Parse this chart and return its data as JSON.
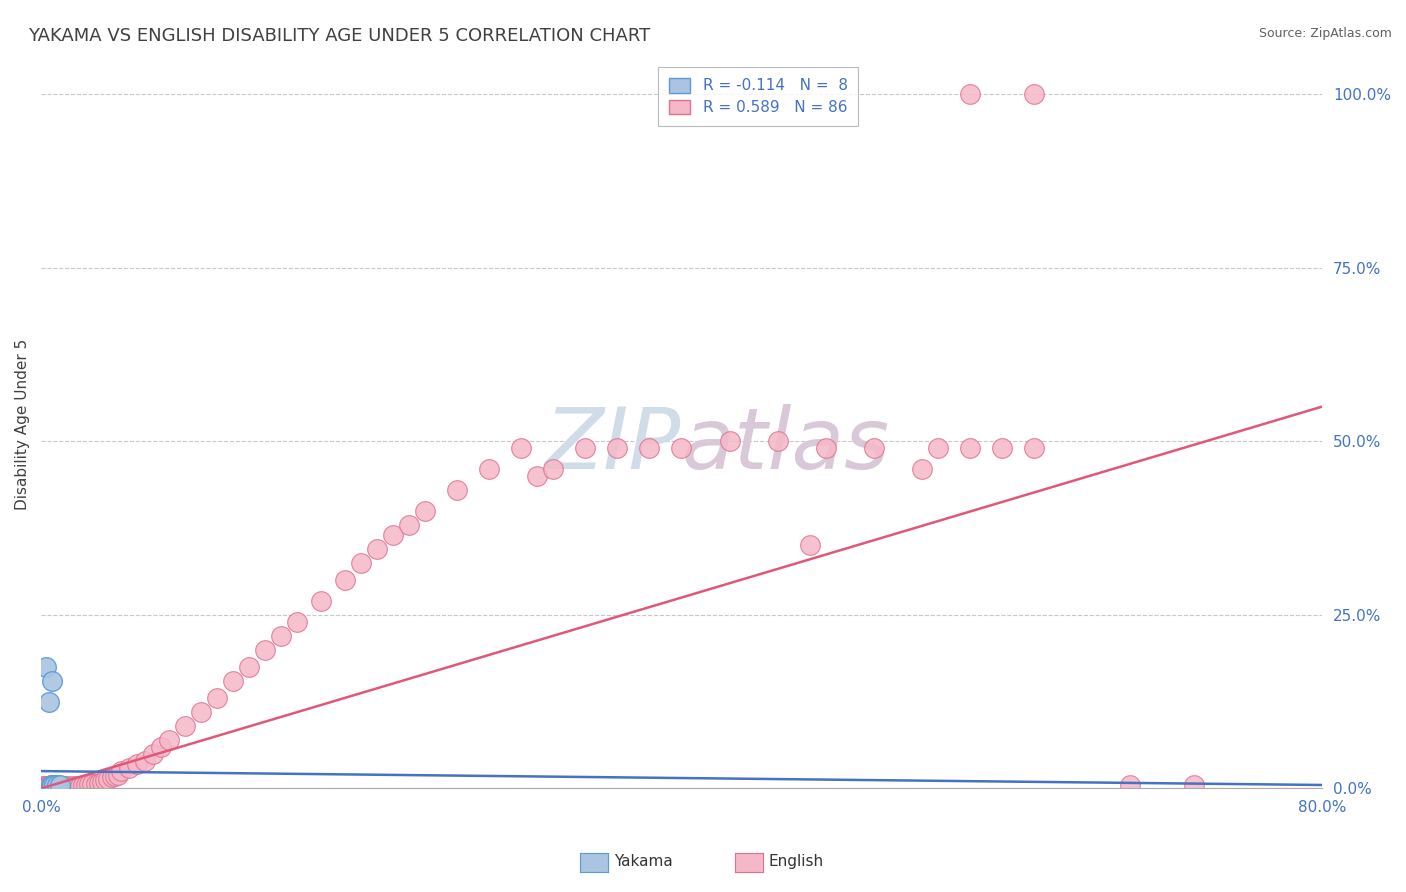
{
  "title": "YAKAMA VS ENGLISH DISABILITY AGE UNDER 5 CORRELATION CHART",
  "source": "Source: ZipAtlas.com",
  "ylabel": "Disability Age Under 5",
  "xmin": 0.0,
  "xmax": 0.8,
  "ymin": 0.0,
  "ymax": 1.05,
  "y_ticks_right": [
    0.0,
    0.25,
    0.5,
    0.75,
    1.0
  ],
  "y_tick_labels_right": [
    "0.0%",
    "25.0%",
    "50.0%",
    "75.0%",
    "100.0%"
  ],
  "yakama_color": "#aac4e2",
  "english_color": "#f5b8c8",
  "yakama_edge_color": "#5b9bd5",
  "english_edge_color": "#e07090",
  "yakama_line_color": "#4472c4",
  "english_line_color": "#e05878",
  "text_color": "#4472c4",
  "grid_color": "#c8c8c8",
  "watermark_color": "#d0dce8",
  "title_color": "#404040",
  "source_color": "#606060",
  "ylabel_color": "#404040",
  "eng_line_y0": 0.0,
  "eng_line_y1": 0.55,
  "yak_line_y0": 0.025,
  "yak_line_y1": 0.005,
  "yakama_x": [
    0.003,
    0.005,
    0.006,
    0.007,
    0.007,
    0.008,
    0.01,
    0.012
  ],
  "yakama_y": [
    0.175,
    0.125,
    0.005,
    0.005,
    0.155,
    0.005,
    0.005,
    0.005
  ],
  "english_x": [
    0.001,
    0.001,
    0.002,
    0.002,
    0.003,
    0.003,
    0.004,
    0.004,
    0.005,
    0.005,
    0.006,
    0.006,
    0.007,
    0.007,
    0.008,
    0.008,
    0.009,
    0.01,
    0.01,
    0.011,
    0.012,
    0.013,
    0.015,
    0.016,
    0.017,
    0.018,
    0.02,
    0.022,
    0.024,
    0.026,
    0.028,
    0.03,
    0.032,
    0.034,
    0.036,
    0.038,
    0.04,
    0.042,
    0.044,
    0.046,
    0.048,
    0.05,
    0.055,
    0.06,
    0.065,
    0.07,
    0.075,
    0.08,
    0.09,
    0.1,
    0.11,
    0.12,
    0.13,
    0.14,
    0.15,
    0.16,
    0.175,
    0.19,
    0.2,
    0.21,
    0.22,
    0.23,
    0.24,
    0.26,
    0.28,
    0.3,
    0.31,
    0.32,
    0.34,
    0.36,
    0.38,
    0.4,
    0.43,
    0.46,
    0.49,
    0.52,
    0.56,
    0.6,
    0.48,
    0.55,
    0.62,
    0.58,
    0.62,
    0.58,
    0.68,
    0.72
  ],
  "english_y": [
    0.002,
    0.003,
    0.002,
    0.003,
    0.002,
    0.003,
    0.002,
    0.003,
    0.002,
    0.003,
    0.002,
    0.003,
    0.002,
    0.003,
    0.002,
    0.003,
    0.002,
    0.002,
    0.003,
    0.002,
    0.003,
    0.002,
    0.003,
    0.002,
    0.003,
    0.002,
    0.003,
    0.004,
    0.004,
    0.005,
    0.005,
    0.006,
    0.006,
    0.007,
    0.008,
    0.01,
    0.012,
    0.014,
    0.016,
    0.018,
    0.02,
    0.025,
    0.03,
    0.035,
    0.04,
    0.05,
    0.06,
    0.07,
    0.09,
    0.11,
    0.13,
    0.155,
    0.175,
    0.2,
    0.22,
    0.24,
    0.27,
    0.3,
    0.325,
    0.345,
    0.365,
    0.38,
    0.4,
    0.43,
    0.46,
    0.49,
    0.45,
    0.46,
    0.49,
    0.49,
    0.49,
    0.49,
    0.5,
    0.5,
    0.49,
    0.49,
    0.49,
    0.49,
    0.35,
    0.46,
    0.49,
    0.49,
    1.0,
    1.0,
    0.005,
    0.005
  ]
}
